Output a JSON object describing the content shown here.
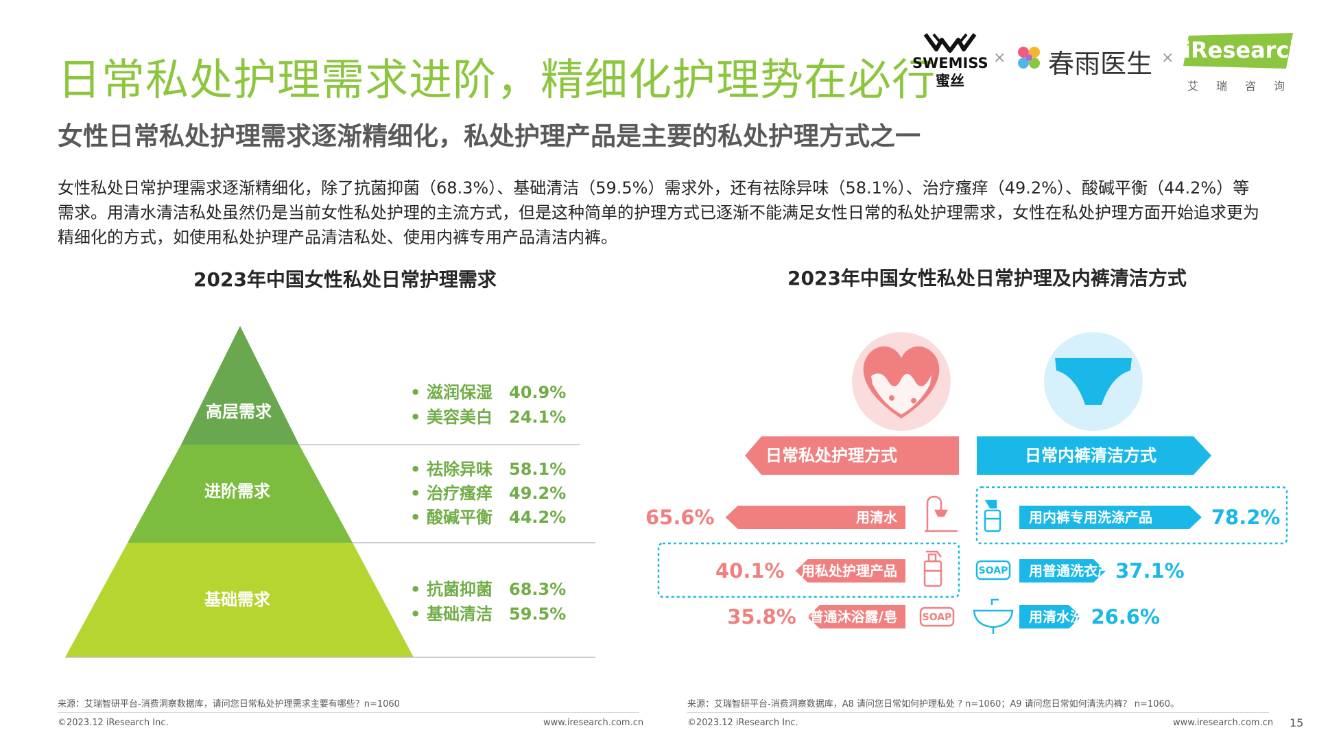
{
  "header": {
    "title": "日常私处护理需求进阶，精细化护理势在必行",
    "subtitle": "女性日常私处护理需求逐渐精细化，私处护理产品是主要的私处护理方式之一",
    "body": "女性私处日常护理需求逐渐精细化，除了抗菌抑菌（68.3%）、基础清洁（59.5%）需求外，还有祛除异味（58.1%）、治疗瘙痒（49.2%）、酸碱平衡（44.2%）等需求。用清水清洁私处虽然仍是当前女性私处护理的主流方式，但是这种简单的护理方式已逐渐不能满足女性日常的私处护理需求，女性在私处护理方面开始追求更为精细化的方式，如使用私处护理产品清洁私处、使用内裤专用产品清洁内裤。"
  },
  "logos": {
    "swemiss_name": "SWEMISS",
    "swemiss_cn": "蜜丝",
    "times": "×",
    "chunyu": "春雨医生",
    "iresearch": "iResearch",
    "iresearch_cn": "艾瑞咨询"
  },
  "colors": {
    "title_green": "#8cc63f",
    "pyramid_top": "#6aa84f",
    "pyramid_mid": "#7cbc3f",
    "pyramid_base": "#b5d531",
    "need_text": "#70ad47",
    "pink": "#f08080",
    "cyan": "#1ab8e8"
  },
  "chart_data": [
    {
      "type": "table",
      "title": "2023年中国女性私处日常护理需求",
      "tiers": [
        {
          "name": "高层需求",
          "items": [
            {
              "label": "滋润保湿",
              "value": "40.9%"
            },
            {
              "label": "美容美白",
              "value": "24.1%"
            }
          ]
        },
        {
          "name": "进阶需求",
          "items": [
            {
              "label": "祛除异味",
              "value": "58.1%"
            },
            {
              "label": "治疗瘙痒",
              "value": "49.2%"
            },
            {
              "label": "酸碱平衡",
              "value": "44.2%"
            }
          ]
        },
        {
          "name": "基础需求",
          "items": [
            {
              "label": "抗菌抑菌",
              "value": "68.3%"
            },
            {
              "label": "基础清洁",
              "value": "59.5%"
            }
          ]
        }
      ]
    },
    {
      "type": "bar",
      "title": "2023年中国女性私处日常护理及内裤清洁方式",
      "series": [
        {
          "name": "日常私处护理方式",
          "categories": [
            "用清水",
            "用私处护理产品",
            "用普通沐浴露/皂"
          ],
          "values": [
            65.6,
            40.1,
            35.8
          ],
          "labels": [
            "65.6%",
            "40.1%",
            "35.8%"
          ],
          "icons": [
            "shower-icon",
            "pump-bottle-icon",
            "soap-icon"
          ]
        },
        {
          "name": "日常内裤清洁方式",
          "categories": [
            "用内裤专用洗涤产品",
            "用普通洗衣产品",
            "用清水洗涤"
          ],
          "values": [
            78.2,
            37.1,
            26.6
          ],
          "labels": [
            "78.2%",
            "37.1%",
            "26.6%"
          ],
          "icons": [
            "spray-bottle-icon",
            "soap-icon",
            "washbasin-icon"
          ]
        }
      ],
      "soap_text": "SOAP"
    }
  ],
  "footer": {
    "left_source": "来源：艾瑞智研平台-消费洞察数据库，请问您日常私处护理需求主要有哪些？n=1060",
    "right_source": "来源：艾瑞智研平台-消费洞察数据库，A8 请问您日常如何护理私处 ? n=1060；A9 请问您日常如何清洗内裤？ n=1060。",
    "copyright": "©2023.12 iResearch Inc.",
    "website": "www.iresearch.com.cn",
    "page": "15"
  }
}
